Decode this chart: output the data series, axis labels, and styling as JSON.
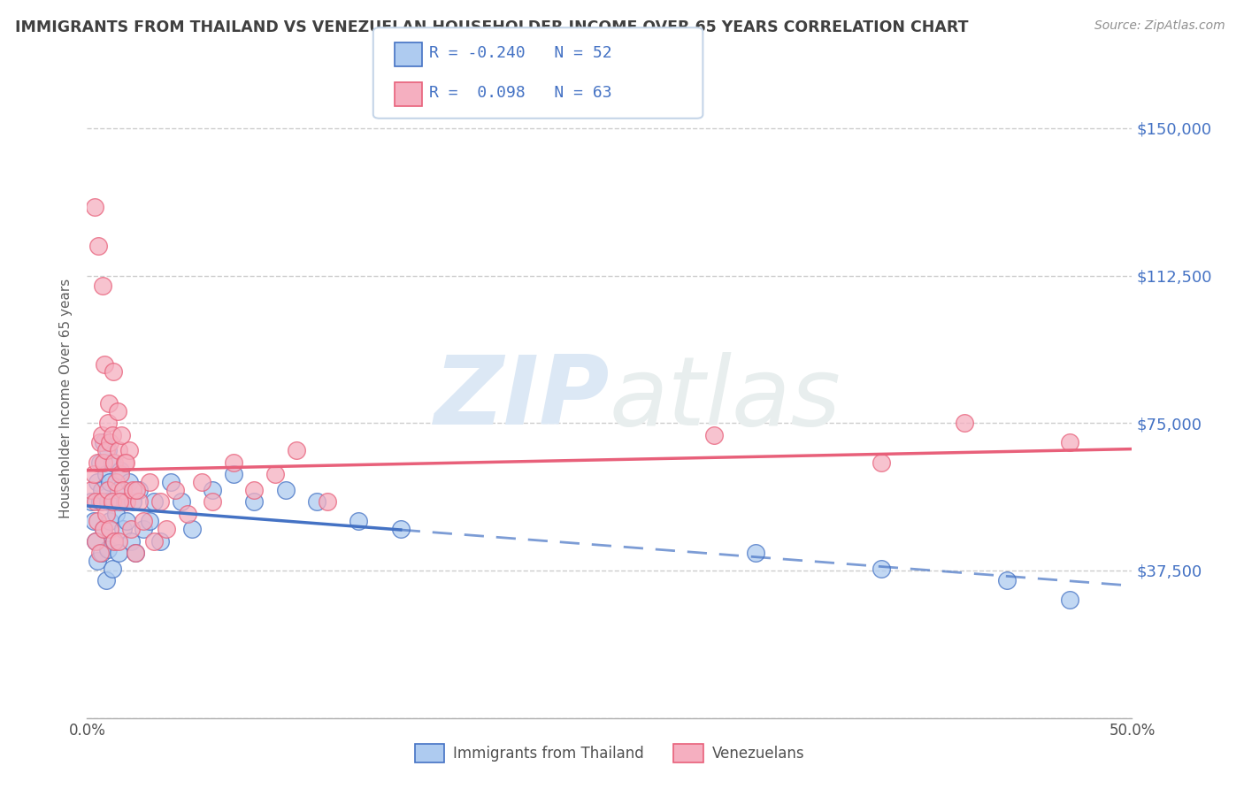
{
  "title": "IMMIGRANTS FROM THAILAND VS VENEZUELAN HOUSEHOLDER INCOME OVER 65 YEARS CORRELATION CHART",
  "source": "Source: ZipAtlas.com",
  "ylabel": "Householder Income Over 65 years",
  "xlim": [
    0.0,
    50.0
  ],
  "ylim": [
    0,
    162500
  ],
  "yticks": [
    0,
    37500,
    75000,
    112500,
    150000
  ],
  "ytick_labels": [
    "",
    "$37,500",
    "$75,000",
    "$112,500",
    "$150,000"
  ],
  "legend_r1": "-0.240",
  "legend_n1": "52",
  "legend_r2": "0.098",
  "legend_n2": "63",
  "color_thailand": "#aecbf0",
  "color_venezuela": "#f5afc0",
  "color_thailand_line": "#4472c4",
  "color_venezuela_line": "#e8607a",
  "color_grid": "#c8c8c8",
  "color_title": "#404040",
  "color_source": "#909090",
  "color_yticklabels": "#4472c4",
  "watermark": "ZIPatlas",
  "watermark_color": "#dce8f5",
  "thailand_x": [
    0.2,
    0.3,
    0.4,
    0.5,
    0.5,
    0.6,
    0.6,
    0.7,
    0.7,
    0.8,
    0.8,
    0.9,
    0.9,
    1.0,
    1.0,
    1.0,
    1.1,
    1.1,
    1.2,
    1.2,
    1.3,
    1.3,
    1.4,
    1.5,
    1.5,
    1.6,
    1.7,
    1.8,
    1.9,
    2.0,
    2.1,
    2.2,
    2.3,
    2.5,
    2.7,
    3.0,
    3.2,
    3.5,
    4.0,
    4.5,
    5.0,
    6.0,
    7.0,
    8.0,
    9.5,
    11.0,
    13.0,
    15.0,
    32.0,
    38.0,
    44.0,
    47.0
  ],
  "thailand_y": [
    55000,
    50000,
    45000,
    60000,
    40000,
    65000,
    55000,
    58000,
    42000,
    70000,
    48000,
    62000,
    35000,
    68000,
    55000,
    43000,
    60000,
    50000,
    65000,
    38000,
    55000,
    45000,
    52000,
    58000,
    42000,
    63000,
    48000,
    55000,
    50000,
    60000,
    45000,
    55000,
    42000,
    58000,
    48000,
    50000,
    55000,
    45000,
    60000,
    55000,
    48000,
    58000,
    62000,
    55000,
    58000,
    55000,
    50000,
    48000,
    42000,
    38000,
    35000,
    30000
  ],
  "venezuela_x": [
    0.2,
    0.3,
    0.4,
    0.4,
    0.5,
    0.5,
    0.6,
    0.6,
    0.7,
    0.7,
    0.8,
    0.8,
    0.9,
    0.9,
    1.0,
    1.0,
    1.1,
    1.1,
    1.2,
    1.2,
    1.3,
    1.3,
    1.4,
    1.5,
    1.5,
    1.6,
    1.7,
    1.8,
    1.9,
    2.0,
    2.1,
    2.2,
    2.3,
    2.5,
    2.7,
    3.0,
    3.2,
    3.5,
    3.8,
    4.2,
    4.8,
    5.5,
    6.0,
    7.0,
    8.0,
    9.0,
    10.0,
    11.5,
    0.35,
    0.55,
    0.75,
    0.85,
    1.05,
    1.25,
    1.45,
    1.65,
    1.85,
    30.0,
    38.0,
    42.0,
    47.0,
    1.55,
    2.35
  ],
  "venezuela_y": [
    58000,
    62000,
    55000,
    45000,
    65000,
    50000,
    70000,
    42000,
    72000,
    55000,
    65000,
    48000,
    68000,
    52000,
    75000,
    58000,
    70000,
    48000,
    72000,
    55000,
    65000,
    45000,
    60000,
    68000,
    45000,
    62000,
    58000,
    65000,
    55000,
    68000,
    48000,
    58000,
    42000,
    55000,
    50000,
    60000,
    45000,
    55000,
    48000,
    58000,
    52000,
    60000,
    55000,
    65000,
    58000,
    62000,
    68000,
    55000,
    130000,
    120000,
    110000,
    90000,
    80000,
    88000,
    78000,
    72000,
    65000,
    72000,
    65000,
    75000,
    70000,
    55000,
    58000
  ],
  "thailand_solid_end": 15.0,
  "venezuela_line_start": 0.0,
  "venezuela_line_end": 50.0
}
